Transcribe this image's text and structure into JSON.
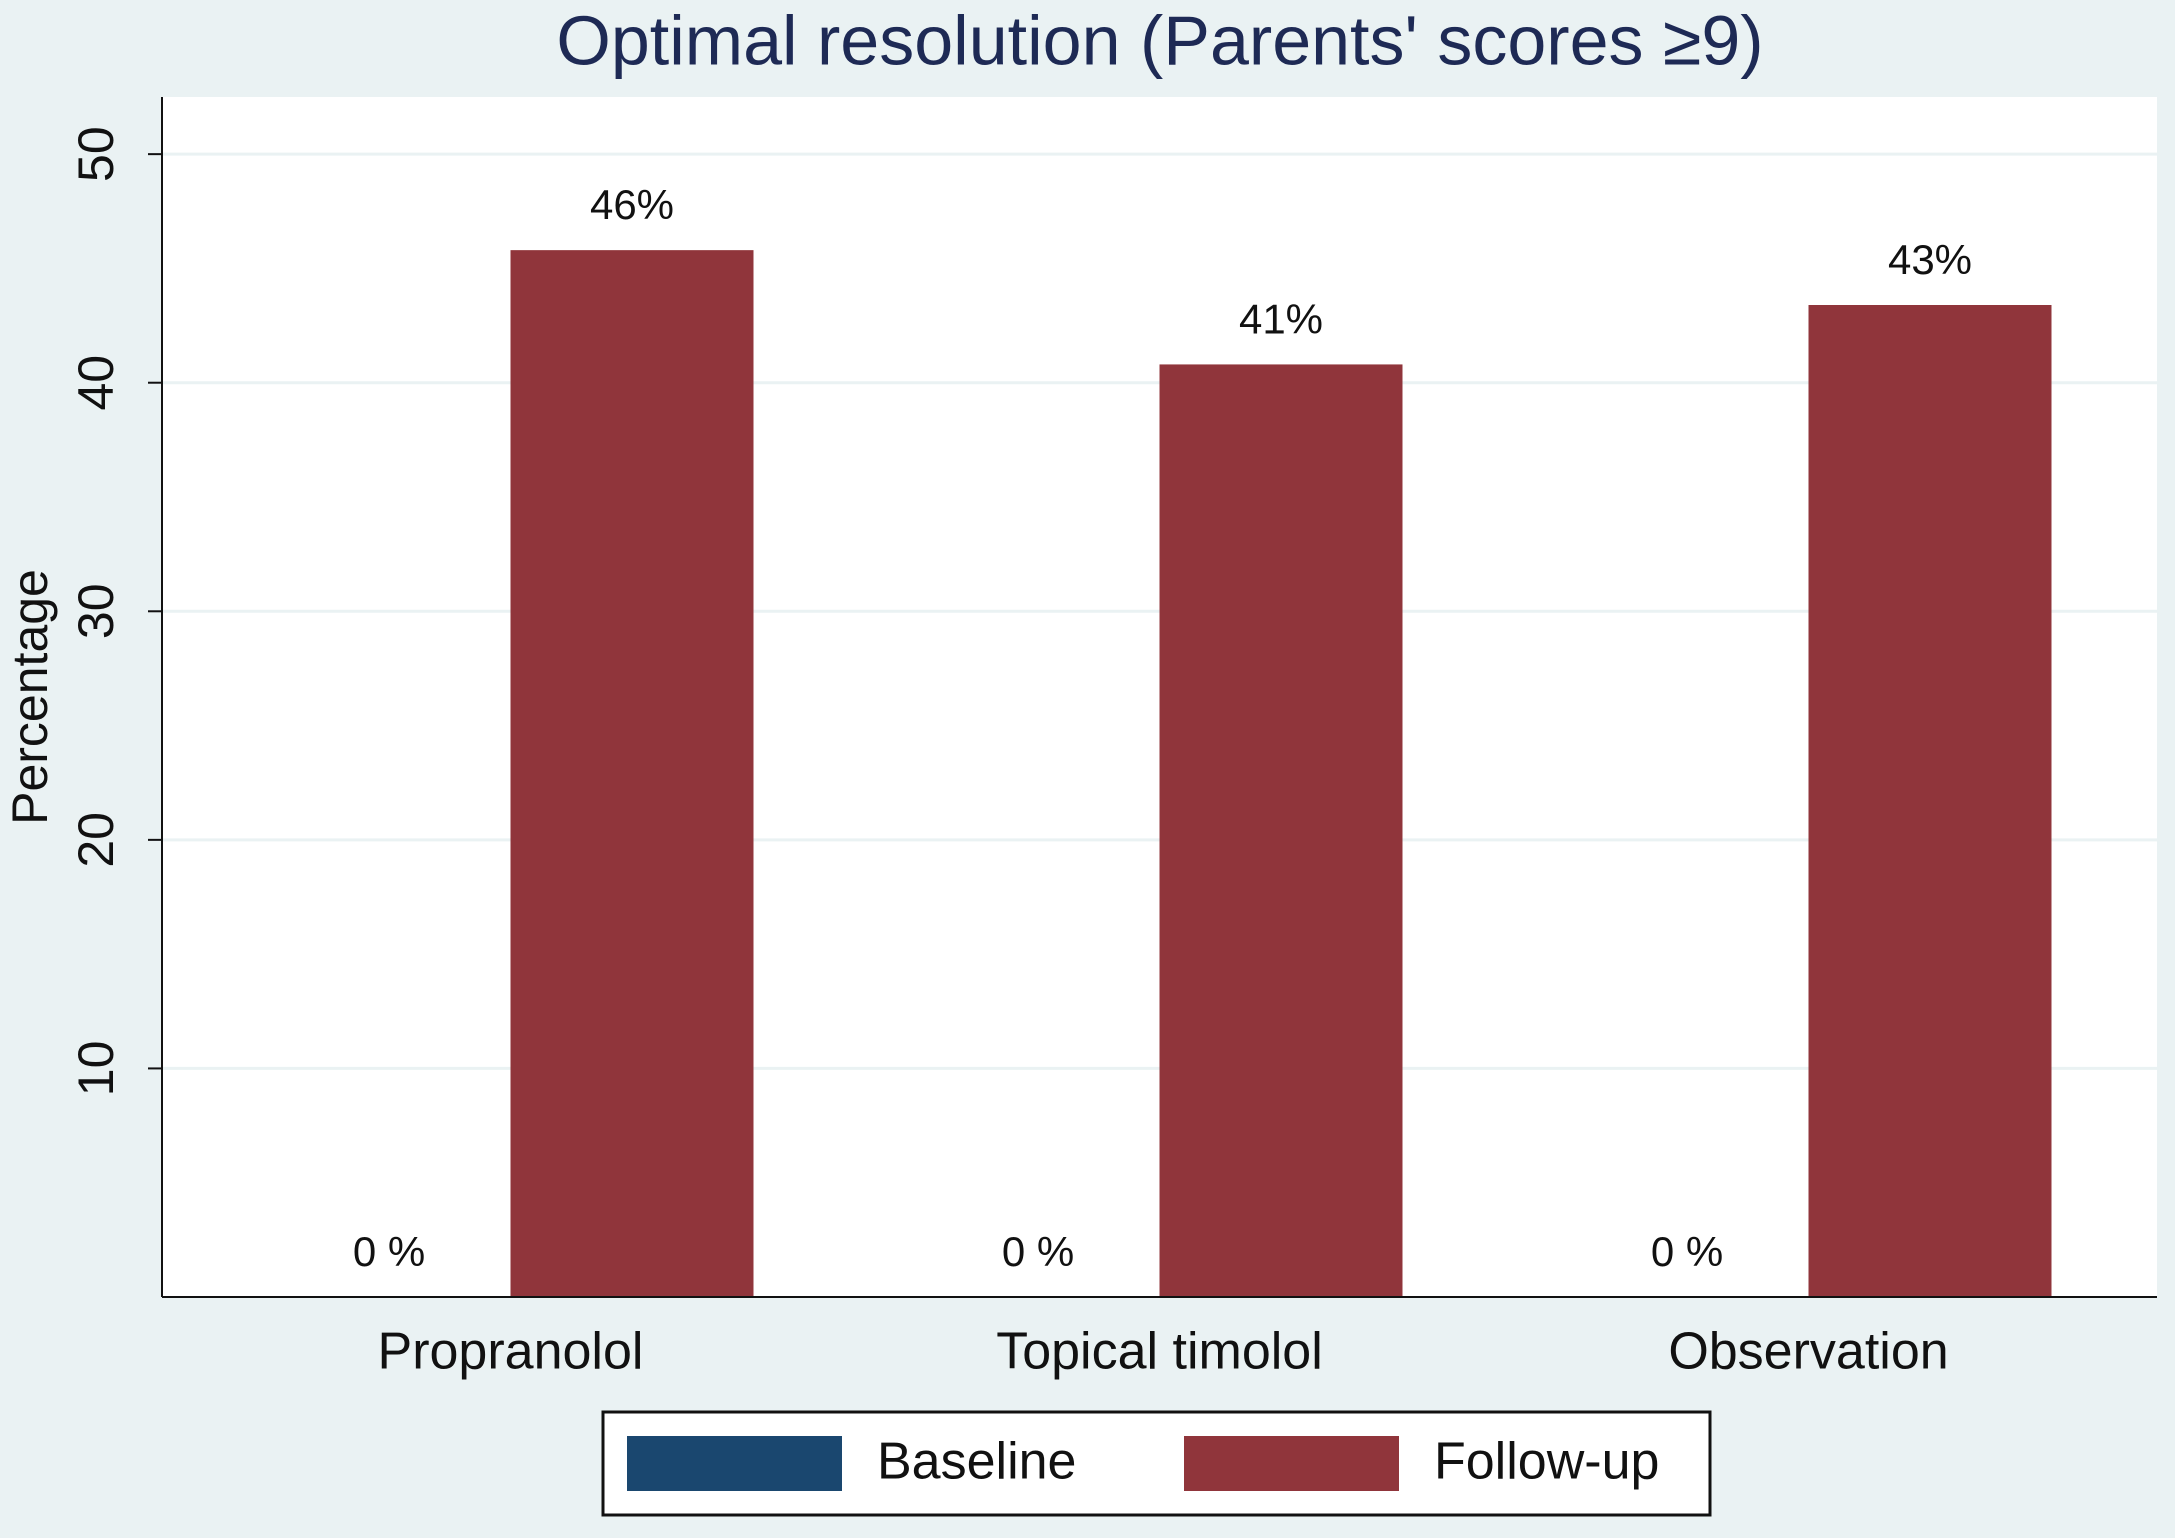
{
  "chart_data": {
    "type": "bar",
    "title": "Optimal resolution (Parents' scores ≥9)",
    "y_label": "Percentage",
    "categories": [
      "Propranolol",
      "Topical timolol",
      "Observation"
    ],
    "series": [
      {
        "name": "Baseline",
        "color": "#1a476f",
        "values": [
          0,
          0,
          0
        ],
        "value_labels": [
          "0 %",
          "0 %",
          "0 %"
        ]
      },
      {
        "name": "Follow-up",
        "color": "#90353b",
        "values": [
          45.8,
          40.8,
          43.4
        ],
        "value_labels": [
          "46%",
          "41%",
          "43%"
        ]
      }
    ],
    "ylim": [
      0,
      52.5
    ],
    "yticks": [
      10,
      20,
      30,
      40,
      50
    ],
    "grid": true,
    "legend": "bottom"
  }
}
